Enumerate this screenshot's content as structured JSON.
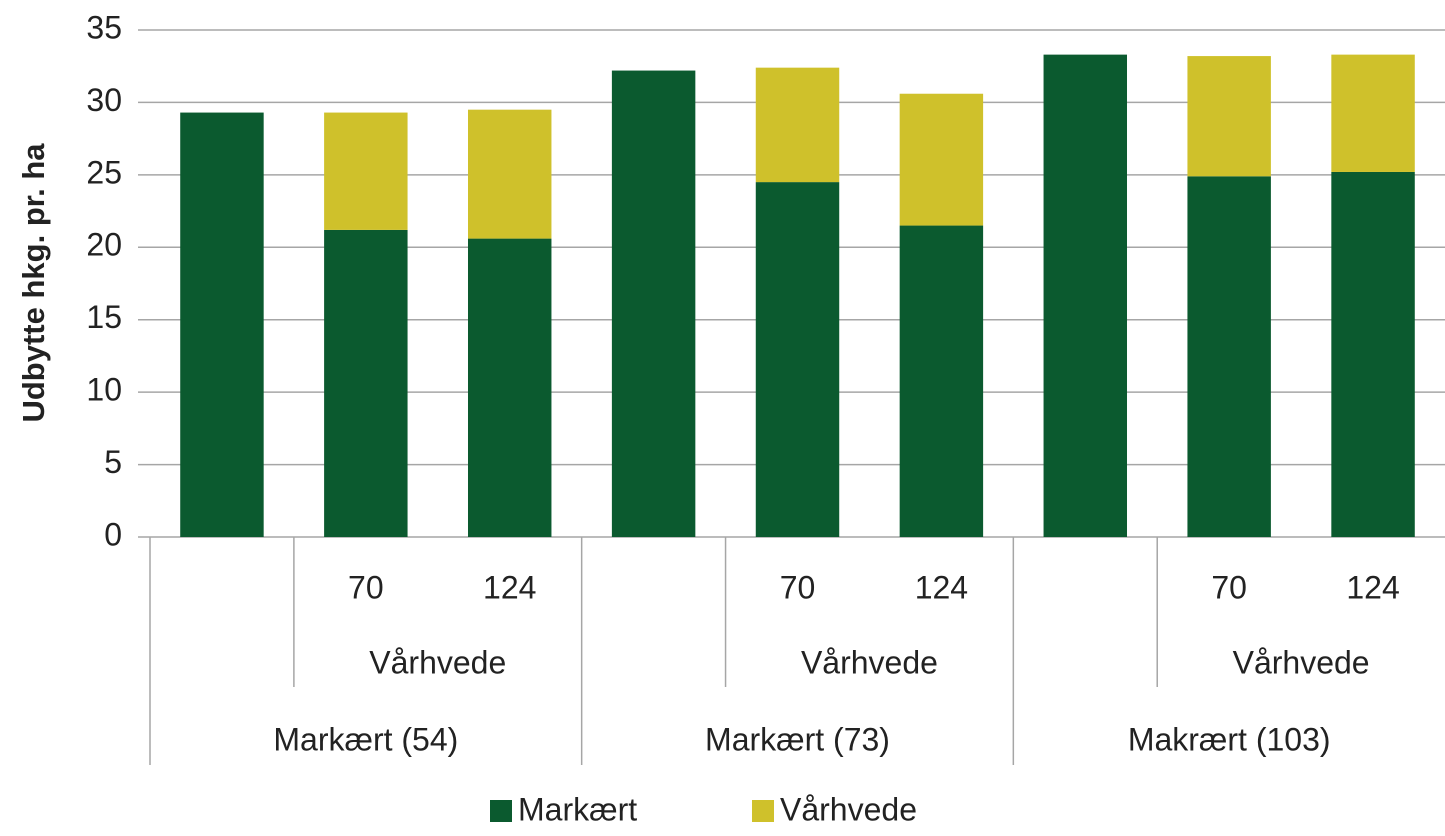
{
  "chart_data": {
    "type": "stacked_bar",
    "y_label": "Udbytte hkg. pr. ha",
    "categories": [
      null,
      "70",
      "124",
      null,
      "70",
      "124",
      null,
      "70",
      "124"
    ],
    "subgroups": [
      null,
      "Vårhvede",
      "Vårhvede",
      null,
      "Vårhvede",
      "Vårhvede",
      null,
      "Vårhvede",
      "Vårhvede"
    ],
    "groups": [
      "Markært (54)",
      "Markært (54)",
      "Markært (54)",
      "Markært (73)",
      "Markært (73)",
      "Markært (73)",
      "Makrært (103)",
      "Makrært (103)",
      "Makrært (103)"
    ],
    "series": [
      {
        "name": "Markært",
        "color": "#0b5a2f",
        "values": [
          29.3,
          21.2,
          20.6,
          32.2,
          24.5,
          21.5,
          33.3,
          24.9,
          25.2
        ]
      },
      {
        "name": "Vårhvede",
        "color": "#cfc12b",
        "values": [
          null,
          8.1,
          8.9,
          null,
          7.9,
          9.1,
          null,
          8.3,
          8.1
        ]
      }
    ],
    "ylim": [
      0,
      35
    ],
    "yticks": [
      0,
      5,
      10,
      15,
      20,
      25,
      30,
      35
    ],
    "grid": true,
    "legend": "bottom"
  }
}
